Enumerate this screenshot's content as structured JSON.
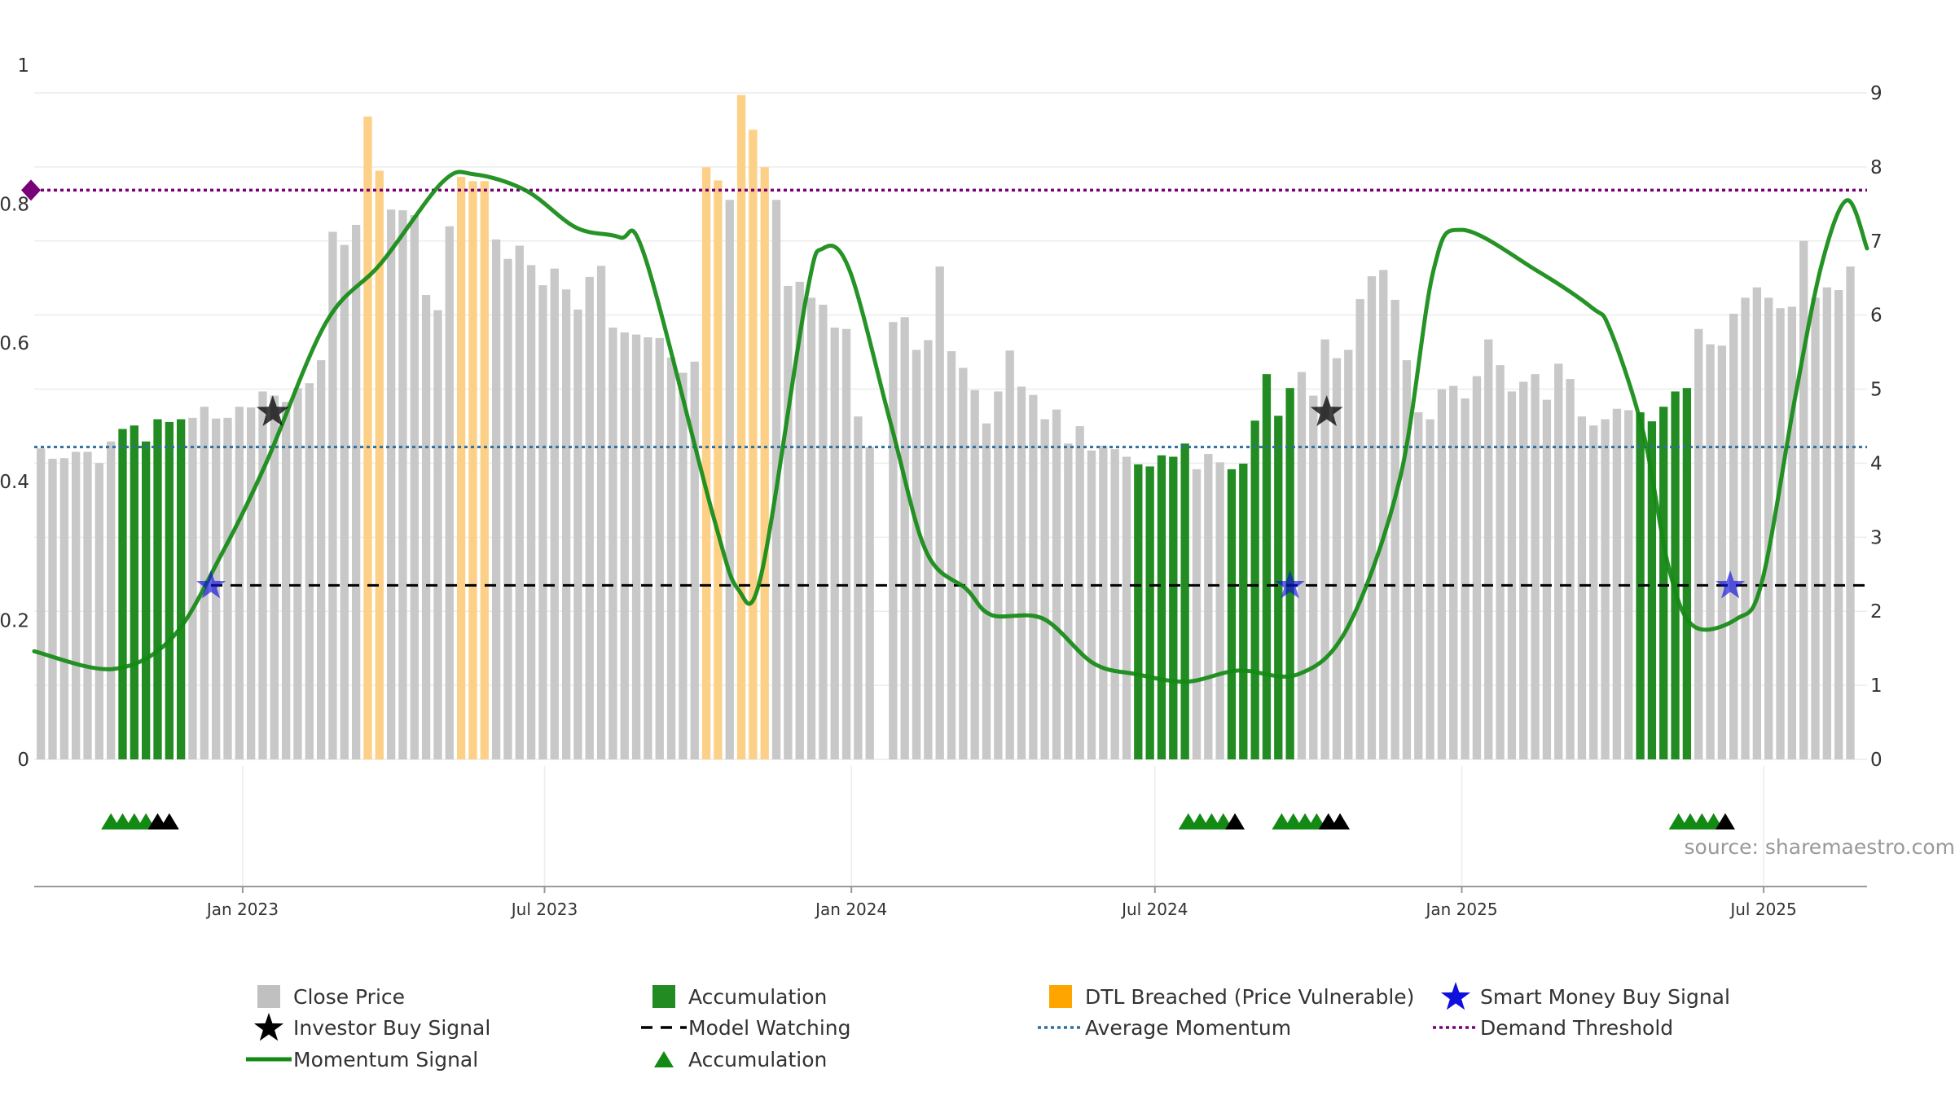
{
  "source": "source: sharemaestro.com",
  "colors": {
    "close_price": "#c8c8c8",
    "accumulation": "#228b22",
    "dtl": "#fdd087",
    "momentum": "#138a13",
    "average": "#2f6f9f",
    "demand": "#7a007a",
    "watching": "#000000",
    "smart_money": "#1010dd",
    "investor": "#000000"
  },
  "chart_data": {
    "type": "bar",
    "left_axis": {
      "ticks": [
        0,
        0.2,
        0.4,
        0.6,
        0.8,
        1
      ],
      "labels": [
        "0",
        "0.2",
        "0.4",
        "0.6",
        "0.8",
        "1"
      ],
      "range": [
        0,
        1
      ]
    },
    "right_axis": {
      "ticks": [
        0,
        1,
        2,
        3,
        4,
        5,
        6,
        7,
        8,
        9
      ],
      "labels": [
        "0",
        "1",
        "2",
        "3",
        "4",
        "5",
        "6",
        "7",
        "8",
        "9"
      ],
      "range": [
        0,
        9.4
      ]
    },
    "x_ticks": [
      "Jan 2023",
      "Jul 2023",
      "Jan 2024",
      "Jul 2024",
      "Jan 2025",
      "Jul 2025"
    ],
    "x_tick_dates": [
      "2023-01-01",
      "2023-07-01",
      "2024-01-01",
      "2024-07-01",
      "2025-01-01",
      "2025-07-01"
    ],
    "x_range": [
      "2022-08-29",
      "2025-09-01"
    ],
    "grid": true,
    "legend_position": "bottom",
    "bars": {
      "start_date": "2022-09-02",
      "interval": "weekly",
      "values": [
        0.448,
        0.433,
        0.434,
        0.443,
        0.443,
        0.427,
        0.458,
        0.476,
        0.481,
        0.458,
        0.49,
        0.486,
        0.49,
        0.492,
        0.508,
        0.491,
        0.492,
        0.508,
        0.507,
        0.53,
        0.524,
        0.515,
        0.535,
        0.542,
        0.575,
        0.76,
        0.741,
        0.77,
        0.926,
        0.848,
        0.792,
        0.791,
        0.784,
        0.669,
        0.647,
        0.768,
        0.839,
        0.833,
        0.833,
        0.749,
        0.721,
        0.74,
        0.712,
        0.683,
        0.707,
        0.677,
        0.648,
        0.695,
        0.711,
        0.622,
        0.615,
        0.612,
        0.608,
        0.607,
        0.579,
        0.557,
        0.573,
        0.853,
        0.834,
        0.806,
        0.957,
        0.907,
        0.853,
        0.806,
        0.682,
        0.688,
        0.665,
        0.655,
        0.622,
        0.62,
        0.494,
        0.45,
        null,
        0.63,
        0.637,
        0.59,
        0.604,
        0.71,
        0.588,
        0.564,
        0.532,
        0.484,
        0.53,
        0.589,
        0.537,
        0.525,
        0.49,
        0.504,
        0.455,
        0.48,
        0.445,
        0.452,
        0.447,
        0.436,
        0.425,
        0.422,
        0.438,
        0.436,
        0.455,
        0.418,
        0.44,
        0.428,
        0.418,
        0.426,
        0.488,
        0.555,
        0.495,
        0.535,
        0.558,
        0.524,
        0.605,
        0.578,
        0.59,
        0.663,
        0.696,
        0.705,
        0.662,
        0.575,
        0.5,
        0.49,
        0.533,
        0.538,
        0.52,
        0.552,
        0.605,
        0.568,
        0.53,
        0.544,
        0.555,
        0.518,
        0.57,
        0.548,
        0.494,
        0.481,
        0.49,
        0.505,
        0.503,
        0.5,
        0.487,
        0.508,
        0.53,
        0.535,
        0.62,
        0.598,
        0.596,
        0.642,
        0.665,
        0.68,
        0.665,
        0.65,
        0.652,
        0.747,
        0.665,
        0.68,
        0.676,
        0.71
      ],
      "types": [
        "c",
        "c",
        "c",
        "c",
        "c",
        "c",
        "c",
        "a",
        "a",
        "a",
        "a",
        "a",
        "a",
        "c",
        "c",
        "c",
        "c",
        "c",
        "c",
        "c",
        "c",
        "c",
        "c",
        "c",
        "c",
        "c",
        "c",
        "c",
        "d",
        "d",
        "c",
        "c",
        "c",
        "c",
        "c",
        "c",
        "d",
        "d",
        "d",
        "c",
        "c",
        "c",
        "c",
        "c",
        "c",
        "c",
        "c",
        "c",
        "c",
        "c",
        "c",
        "c",
        "c",
        "c",
        "c",
        "c",
        "c",
        "d",
        "d",
        "c",
        "d",
        "d",
        "d",
        "c",
        "c",
        "c",
        "c",
        "c",
        "c",
        "c",
        "c",
        "c",
        "c",
        "c",
        "c",
        "c",
        "c",
        "c",
        "c",
        "c",
        "c",
        "c",
        "c",
        "c",
        "c",
        "c",
        "c",
        "c",
        "c",
        "c",
        "c",
        "c",
        "c",
        "c",
        "a",
        "a",
        "a",
        "a",
        "a",
        "c",
        "c",
        "c",
        "a",
        "a",
        "a",
        "a",
        "a",
        "a",
        "c",
        "c",
        "c",
        "c",
        "c",
        "c",
        "c",
        "c",
        "c",
        "c",
        "c",
        "c",
        "c",
        "c",
        "c",
        "c",
        "c",
        "c",
        "c",
        "c",
        "c",
        "c",
        "c",
        "c",
        "c",
        "c",
        "c",
        "c",
        "c",
        "a",
        "a",
        "a",
        "a",
        "a",
        "c",
        "c",
        "c",
        "c",
        "c",
        "c",
        "c",
        "c",
        "c",
        "c",
        "c",
        "c",
        "c",
        "c"
      ]
    },
    "momentum_signal": [
      [
        "2022-08-29",
        1.46
      ],
      [
        "2022-10-15",
        1.22
      ],
      [
        "2022-11-20",
        1.65
      ],
      [
        "2022-12-20",
        2.8
      ],
      [
        "2023-01-15",
        4.0
      ],
      [
        "2023-02-20",
        5.9
      ],
      [
        "2023-03-25",
        6.7
      ],
      [
        "2023-05-01",
        7.8
      ],
      [
        "2023-05-20",
        7.9
      ],
      [
        "2023-06-20",
        7.68
      ],
      [
        "2023-07-20",
        7.18
      ],
      [
        "2023-08-15",
        7.05
      ],
      [
        "2023-08-30",
        6.8
      ],
      [
        "2023-10-10",
        3.3
      ],
      [
        "2023-10-25",
        2.3
      ],
      [
        "2023-11-08",
        2.5
      ],
      [
        "2023-12-05",
        6.25
      ],
      [
        "2023-12-15",
        6.9
      ],
      [
        "2023-12-31",
        6.6
      ],
      [
        "2024-01-25",
        4.5
      ],
      [
        "2024-02-15",
        2.8
      ],
      [
        "2024-03-10",
        2.3
      ],
      [
        "2024-03-25",
        1.95
      ],
      [
        "2024-04-25",
        1.9
      ],
      [
        "2024-05-25",
        1.3
      ],
      [
        "2024-06-20",
        1.15
      ],
      [
        "2024-07-20",
        1.05
      ],
      [
        "2024-08-20",
        1.2
      ],
      [
        "2024-09-25",
        1.15
      ],
      [
        "2024-10-25",
        1.8
      ],
      [
        "2024-11-25",
        3.8
      ],
      [
        "2024-12-15",
        6.6
      ],
      [
        "2025-01-01",
        7.15
      ],
      [
        "2025-02-15",
        6.6
      ],
      [
        "2025-03-20",
        6.1
      ],
      [
        "2025-03-31",
        5.8
      ],
      [
        "2025-04-20",
        4.4
      ],
      [
        "2025-05-05",
        2.6
      ],
      [
        "2025-05-20",
        1.8
      ],
      [
        "2025-06-15",
        1.9
      ],
      [
        "2025-06-30",
        2.4
      ],
      [
        "2025-07-20",
        4.9
      ],
      [
        "2025-08-05",
        6.7
      ],
      [
        "2025-08-20",
        7.55
      ],
      [
        "2025-09-01",
        6.9
      ]
    ],
    "average_momentum": 0.45,
    "model_watching": 2.35,
    "demand_threshold": 0.82,
    "investor_buy_signals": [
      [
        "2023-01-19",
        0.5
      ],
      [
        "2024-10-12",
        0.5
      ]
    ],
    "smart_money_buy_signals": [
      [
        "2022-12-13",
        0.25
      ],
      [
        "2024-09-20",
        0.25
      ],
      [
        "2025-06-11",
        0.25
      ]
    ],
    "accumulation_markers": [
      {
        "date": "2022-10-14",
        "color": "green"
      },
      {
        "date": "2022-10-21",
        "color": "green"
      },
      {
        "date": "2022-10-28",
        "color": "green"
      },
      {
        "date": "2022-11-04",
        "color": "green"
      },
      {
        "date": "2022-11-11",
        "color": "black"
      },
      {
        "date": "2022-11-18",
        "color": "black"
      },
      {
        "date": "2024-07-21",
        "color": "green"
      },
      {
        "date": "2024-07-28",
        "color": "green"
      },
      {
        "date": "2024-08-04",
        "color": "green"
      },
      {
        "date": "2024-08-11",
        "color": "green"
      },
      {
        "date": "2024-08-18",
        "color": "black"
      },
      {
        "date": "2024-09-15",
        "color": "green"
      },
      {
        "date": "2024-09-22",
        "color": "green"
      },
      {
        "date": "2024-09-29",
        "color": "green"
      },
      {
        "date": "2024-10-06",
        "color": "green"
      },
      {
        "date": "2024-10-13",
        "color": "black"
      },
      {
        "date": "2024-10-20",
        "color": "black"
      },
      {
        "date": "2025-05-11",
        "color": "green"
      },
      {
        "date": "2025-05-18",
        "color": "green"
      },
      {
        "date": "2025-05-25",
        "color": "green"
      },
      {
        "date": "2025-06-01",
        "color": "green"
      },
      {
        "date": "2025-06-08",
        "color": "black"
      }
    ],
    "legend": [
      {
        "label": "Close Price",
        "kind": "square",
        "color": "#c0c0c0"
      },
      {
        "label": "Accumulation",
        "kind": "square",
        "color": "#228b22"
      },
      {
        "label": "DTL Breached (Price Vulnerable)",
        "kind": "square",
        "color": "#ffa500"
      },
      {
        "label": "Smart Money Buy Signal",
        "kind": "star",
        "color": "#1010dd"
      },
      {
        "label": "Investor Buy Signal",
        "kind": "star",
        "color": "#000000"
      },
      {
        "label": "Model Watching",
        "kind": "dash",
        "color": "#000000"
      },
      {
        "label": "Average Momentum",
        "kind": "dot",
        "color": "#2f6f9f"
      },
      {
        "label": "Demand Threshold",
        "kind": "dot",
        "color": "#7a007a"
      },
      {
        "label": "Momentum Signal",
        "kind": "line",
        "color": "#138a13"
      },
      {
        "label": "Accumulation",
        "kind": "triangle",
        "color": "#138a13"
      }
    ]
  }
}
